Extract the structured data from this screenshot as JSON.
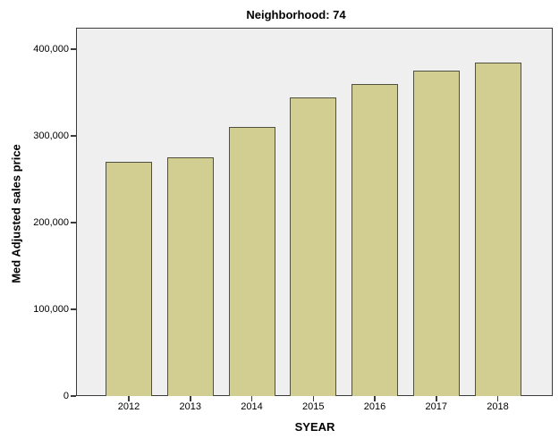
{
  "chart_data": {
    "type": "bar",
    "title": "Neighborhood: 74",
    "xlabel": "SYEAR",
    "ylabel": "Med Adjusted sales price",
    "categories": [
      "2012",
      "2013",
      "2014",
      "2015",
      "2016",
      "2017",
      "2018"
    ],
    "values": [
      270000,
      275000,
      310000,
      345000,
      360000,
      375000,
      385000
    ],
    "ylim": [
      0,
      425000
    ],
    "yticks": [
      0,
      100000,
      200000,
      300000,
      400000
    ],
    "ytick_labels": [
      "0",
      "100,000",
      "200,000",
      "300,000",
      "400,000"
    ],
    "grid": false,
    "legend": "none",
    "colors": {
      "bar_fill": "#D2CD90",
      "bar_border": "#50503E",
      "plot_background": "#EFEFEF",
      "frame": "#3B3B3B",
      "text": "#000000",
      "page_background": "#FFFFFF"
    }
  }
}
